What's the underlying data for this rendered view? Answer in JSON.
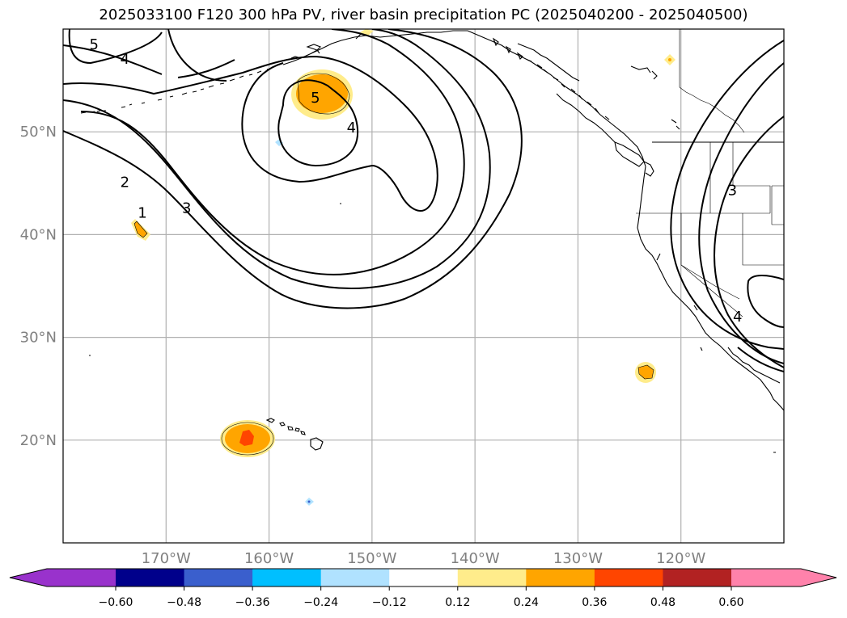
{
  "title": "2025033100 F120 300 hPa PV, river basin precipitation PC (2025040200 - 2025040500)",
  "map": {
    "lon_range": [
      -180,
      -110
    ],
    "lat_range": [
      10,
      60
    ],
    "lat_ticks": [
      {
        "value": 20,
        "label": "20°N"
      },
      {
        "value": 30,
        "label": "30°N"
      },
      {
        "value": 40,
        "label": "40°N"
      },
      {
        "value": 50,
        "label": "50°N"
      }
    ],
    "lon_ticks": [
      {
        "value": -170,
        "label": "170°W"
      },
      {
        "value": -160,
        "label": "160°W"
      },
      {
        "value": -150,
        "label": "150°W"
      },
      {
        "value": -140,
        "label": "140°W"
      },
      {
        "value": -130,
        "label": "130°W"
      },
      {
        "value": -120,
        "label": "120°W"
      }
    ],
    "grid": true,
    "contour_labels": [
      {
        "text": "1",
        "lon": -172.3,
        "lat": 42.1
      },
      {
        "text": "2",
        "lon": -174.0,
        "lat": 45.1
      },
      {
        "text": "3",
        "lon": -168.0,
        "lat": 42.6
      },
      {
        "text": "4",
        "lon": -152.0,
        "lat": 50.4
      },
      {
        "text": "4",
        "lon": -174.0,
        "lat": 57.1
      },
      {
        "text": "5",
        "lon": -155.5,
        "lat": 53.3
      },
      {
        "text": "5",
        "lon": -177.0,
        "lat": 58.5
      },
      {
        "text": "3",
        "lon": -115.0,
        "lat": 44.3
      },
      {
        "text": "4",
        "lon": -114.5,
        "lat": 32.0
      }
    ]
  },
  "colorbar": {
    "colors": [
      "#9932CC",
      "#00008B",
      "#3A5FCD",
      "#00BFFF",
      "#B0E2FF",
      "#FFFFFF",
      "#FFEC8B",
      "#FFA500",
      "#FF4500",
      "#B22222",
      "#FF82AB"
    ],
    "tick_labels": [
      "−0.60",
      "−0.48",
      "−0.36",
      "−0.24",
      "−0.12",
      "0.12",
      "0.24",
      "0.36",
      "0.48",
      "0.60"
    ]
  }
}
